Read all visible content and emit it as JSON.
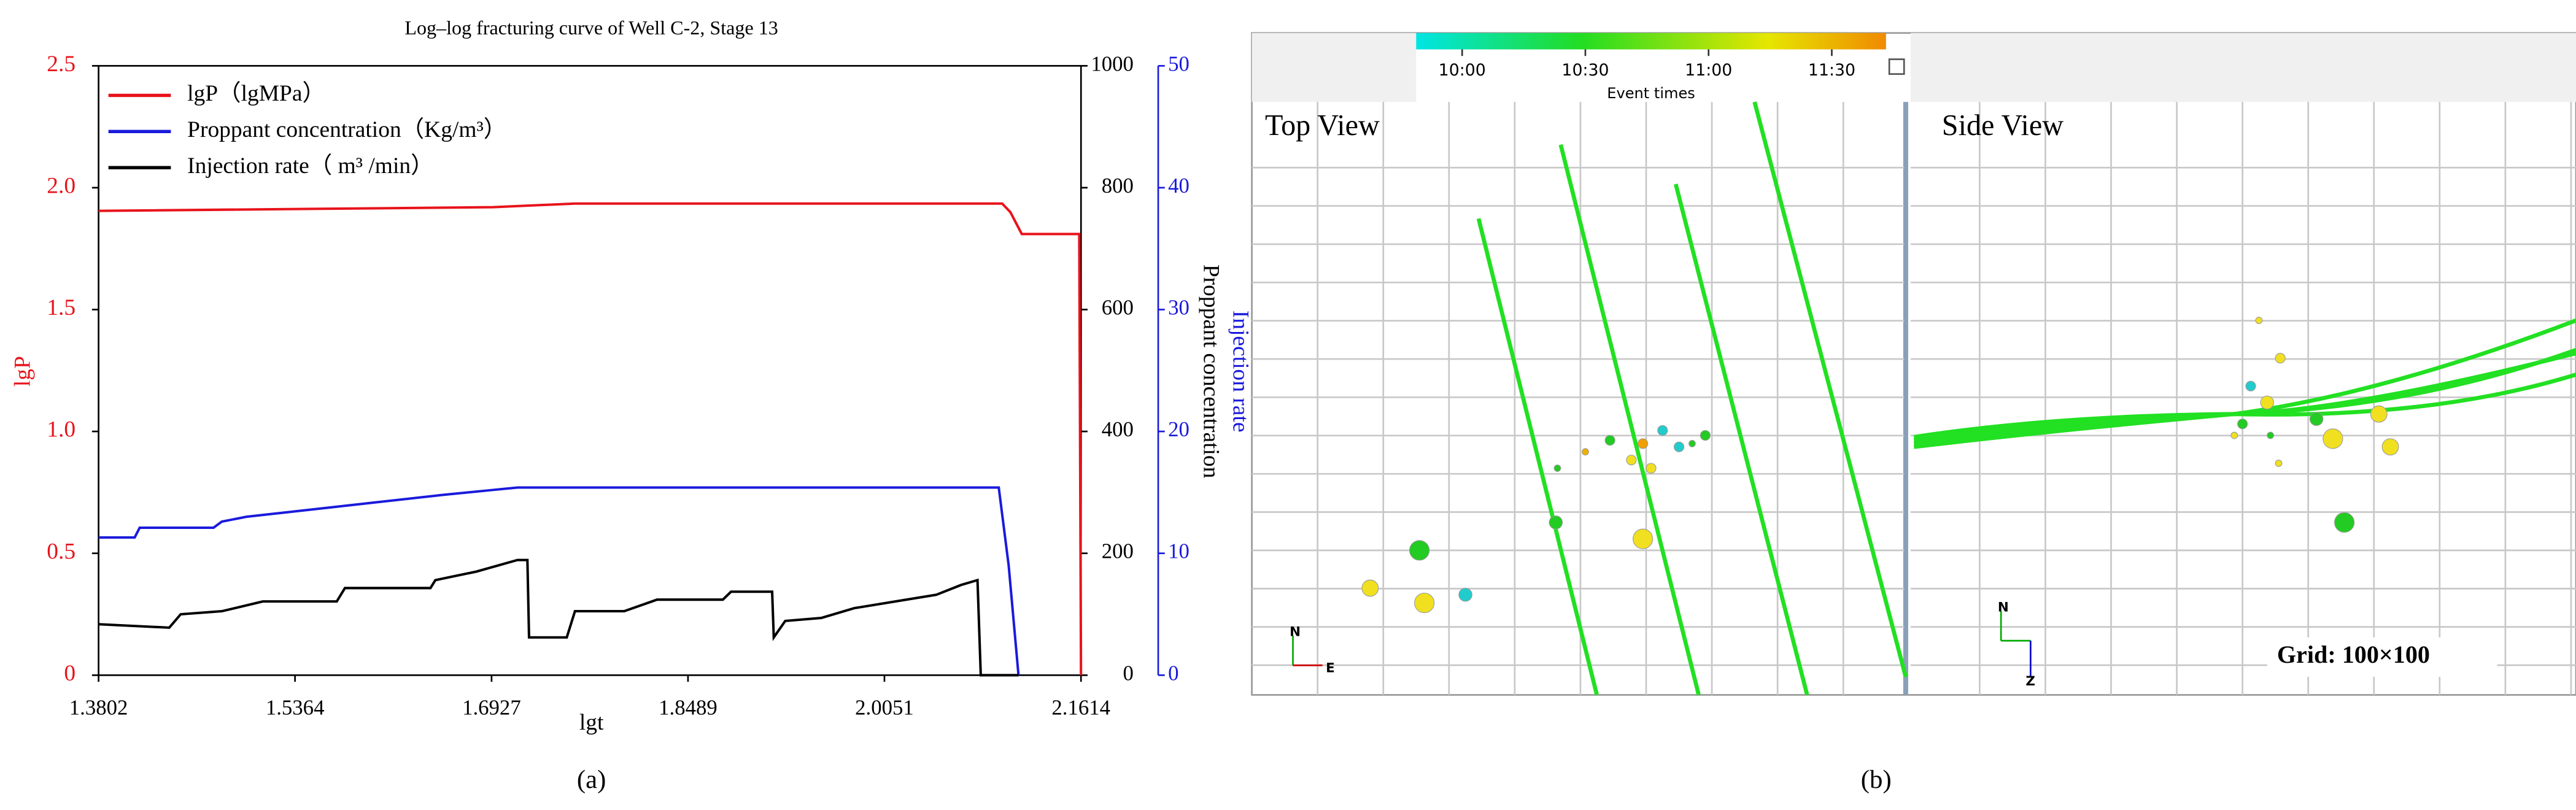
{
  "chart_data": {
    "type": "line",
    "title": "Log–log fracturing curve of Well C-2, Stage 13",
    "xlabel": "lgt",
    "ylabel": "lgP",
    "y2label": "Proppant concentration",
    "y3label": "Injection rate",
    "xlim": [
      1.3802,
      2.1614
    ],
    "xticks": [
      1.3802,
      1.5364,
      1.6927,
      1.8489,
      2.0051,
      2.1614
    ],
    "ylim": [
      0,
      2.5
    ],
    "yticks": [
      0,
      0.5,
      {
        "value": 1,
        "label": "1.0"
      },
      1.5,
      {
        "value": 2,
        "label": "2.0"
      },
      2.5
    ],
    "y2lim": [
      0,
      1000
    ],
    "y2ticks": [
      0,
      200,
      400,
      600,
      800,
      1000
    ],
    "y3lim": [
      0,
      50
    ],
    "y3ticks": [
      0,
      10,
      20,
      30,
      40,
      50
    ],
    "legend": "upper left",
    "series": [
      {
        "name": "lgP（lgMPa）",
        "color": "#e8131b",
        "x": [
          1.3802,
          1.6937,
          1.759,
          2.0987,
          2.1052,
          2.1143,
          2.16,
          2.1614
        ],
        "values": [
          1.905,
          1.92,
          1.935,
          1.935,
          1.9,
          1.81,
          1.81,
          0
        ]
      },
      {
        "name": "Proppant concentration（Kg/m³）",
        "color": "#1a1adc",
        "axis": "y2",
        "x": [
          1.3802,
          1.4089,
          1.4129,
          1.4716,
          1.4782,
          1.4978,
          1.55,
          1.6023,
          1.6545,
          1.6937,
          1.7133,
          2.096,
          2.1039,
          2.1117
        ],
        "values": [
          226,
          226,
          242,
          242,
          252,
          260,
          272,
          284,
          296,
          304,
          308,
          308,
          180,
          0
        ]
      },
      {
        "name": "Injection rate（ m³ /min）",
        "color": "#000000",
        "axis": "y3",
        "x": [
          1.3802,
          1.4364,
          1.4455,
          1.4782,
          1.5108,
          1.5696,
          1.5761,
          1.6441,
          1.648,
          1.6806,
          1.7133,
          1.7212,
          1.7225,
          1.7525,
          1.759,
          1.7982,
          1.8243,
          1.8766,
          1.8831,
          1.9158,
          1.9171,
          1.9262,
          1.955,
          1.9811,
          2.0138,
          2.0464,
          2.066,
          2.0791,
          2.0817,
          2.1117
        ],
        "values": [
          4.18,
          3.9,
          5.0,
          5.25,
          6.05,
          6.05,
          7.15,
          7.15,
          7.8,
          8.5,
          9.45,
          9.45,
          3.1,
          3.1,
          5.25,
          5.25,
          6.2,
          6.2,
          6.85,
          6.85,
          3.1,
          4.45,
          4.7,
          5.5,
          6.05,
          6.6,
          7.4,
          7.8,
          0,
          0
        ]
      }
    ],
    "panel_label": "(a)"
  },
  "panel_b": {
    "colorbar": {
      "label": "Event times",
      "ticks": [
        "10:00",
        "10:30",
        "11:00",
        "11:30"
      ]
    },
    "top_view": {
      "title": "Top View",
      "axes": [
        "N",
        "E"
      ]
    },
    "side_view": {
      "title": "Side View",
      "axes": [
        "N",
        "Z"
      ],
      "grid_note": "Grid: 100×100"
    },
    "panel_label": "(b)"
  }
}
